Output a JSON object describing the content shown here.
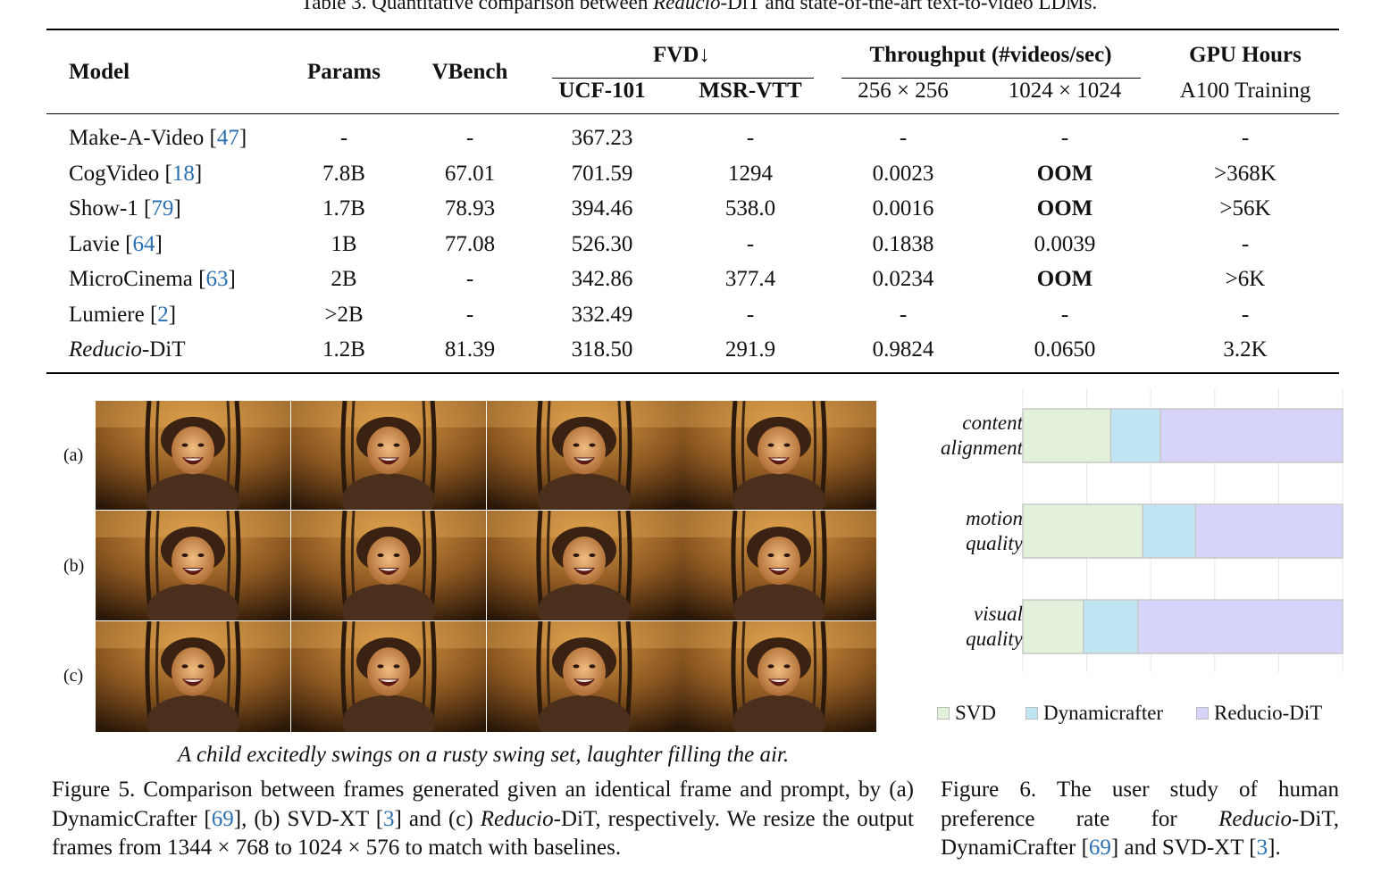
{
  "table3": {
    "caption": "Table 3. Quantitative comparison between Reducio-DiT and state-of-the-art text-to-video LDMs.",
    "caption_pre": "Table 3. Quantitative comparison between ",
    "caption_em": "Reducio",
    "caption_post": "-DiT and state-of-the-art text-to-video LDMs.",
    "headers": {
      "model": "Model",
      "params": "Params",
      "vbench": "VBench",
      "fvd": "FVD↓",
      "ucf": "UCF-101",
      "msr": "MSR-VTT",
      "throughput": "Throughput (#videos/sec)",
      "t256": "256 × 256",
      "t1024": "1024 × 1024",
      "gpu": "GPU Hours",
      "gpu_sub": "A100 Training"
    },
    "rows": [
      {
        "model": "Make-A-Video ",
        "cite": "47",
        "params": "-",
        "vbench": "-",
        "ucf": "367.23",
        "msr": "-",
        "t256": "-",
        "t1024": "-",
        "gpu": "-"
      },
      {
        "model": "CogVideo ",
        "cite": "18",
        "params": "7.8B",
        "vbench": "67.01",
        "ucf": "701.59",
        "msr": "1294",
        "t256": "0.0023",
        "t1024": "OOM",
        "gpu": ">368K"
      },
      {
        "model": "Show-1 ",
        "cite": "79",
        "params": "1.7B",
        "vbench": "78.93",
        "ucf": "394.46",
        "msr": "538.0",
        "t256": "0.0016",
        "t1024": "OOM",
        "gpu": ">56K"
      },
      {
        "model": "Lavie ",
        "cite": "64",
        "params": "1B",
        "vbench": "77.08",
        "ucf": "526.30",
        "msr": "-",
        "t256": "0.1838",
        "t1024": "0.0039",
        "gpu": "-"
      },
      {
        "model": "MicroCinema ",
        "cite": "63",
        "params": "2B",
        "vbench": "-",
        "ucf": "342.86",
        "msr": "377.4",
        "t256": "0.0234",
        "t1024": "OOM",
        "gpu": ">6K"
      },
      {
        "model": "Lumiere ",
        "cite": "2",
        "params": ">2B",
        "vbench": "-",
        "ucf": "332.49",
        "msr": "-",
        "t256": "-",
        "t1024": "-",
        "gpu": "-"
      },
      {
        "model_em": "Reducio",
        "model": "-DiT",
        "params": "1.2B",
        "vbench": "81.39",
        "ucf": "318.50",
        "msr": "291.9",
        "t256": "0.9824",
        "t1024": "0.0650",
        "gpu": "3.2K"
      }
    ]
  },
  "figure5": {
    "row_labels": [
      "(a)",
      "(b)",
      "(c)"
    ],
    "prompt": "A child excitedly swings on a rusty swing set, laughter filling the air.",
    "caption": {
      "p1": "Figure 5. Comparison between frames generated given an identical frame and prompt, by (a) DynamicCrafter [",
      "c1": "69",
      "p2": "], (b) SVD-XT [",
      "c2": "3",
      "p3": "] and (c) ",
      "em": "Reducio",
      "p4": "-DiT, respectively. We resize the output frames from 1344 × 768 to 1024 × 576 to match with baselines."
    }
  },
  "chart_data": {
    "type": "bar",
    "orientation": "horizontal-stacked",
    "categories": [
      "content alignment",
      "motion quality",
      "visual quality"
    ],
    "category_lines": [
      [
        "content",
        "alignment"
      ],
      [
        "motion",
        "quality"
      ],
      [
        "visual",
        "quality"
      ]
    ],
    "series": [
      {
        "name": "SVD",
        "values": [
          27.5,
          37.5,
          19.0
        ],
        "color": "#e3f1da"
      },
      {
        "name": "Dynamicrafter",
        "values": [
          15.5,
          16.5,
          17.0
        ],
        "color": "#bfe6f2"
      },
      {
        "name": "Reducio-DiT",
        "values": [
          57.0,
          46.0,
          64.0
        ],
        "color": "#d6d4fb"
      }
    ],
    "xlim": [
      0,
      100
    ],
    "grid": true,
    "legend": "bottom"
  },
  "figure6": {
    "caption": {
      "p1": "Figure 6. The user study of human preference rate for ",
      "em": "Reducio",
      "p2": "-DiT, DynamiCrafter [",
      "c1": "69",
      "p3": "] and SVD-XT [",
      "c2": "3",
      "p4": "]."
    }
  }
}
